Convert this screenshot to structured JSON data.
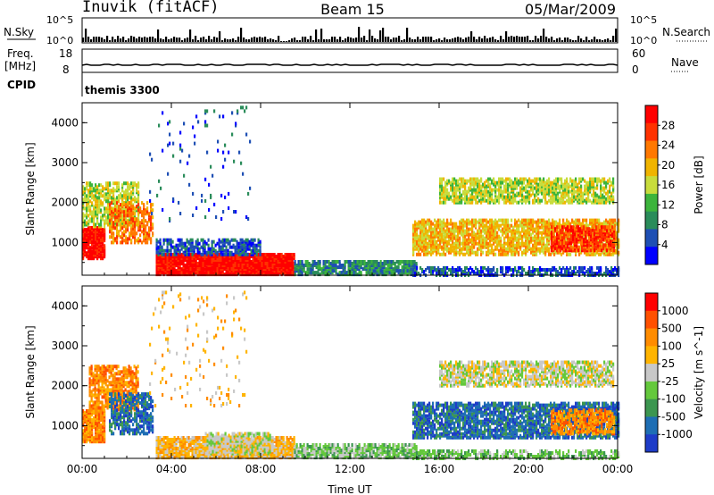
{
  "header": {
    "station": "Inuvik (fitACF)",
    "beam": "Beam 15",
    "date": "05/Mar/2009"
  },
  "summary_panels": {
    "nsky_label": "N.Sky",
    "nsearch_label": "N.Search",
    "nsky_ticks": [
      "10^5",
      "10^0"
    ],
    "nsearch_ticks": [
      "10^5",
      "10^0"
    ],
    "freq_label": "Freq.",
    "freq_unit": "[MHz]",
    "freq_ticks": [
      "18",
      "8"
    ],
    "nave_label": "Nave",
    "nave_ticks": [
      "60",
      "0"
    ],
    "cpid_label": "CPID",
    "cpid_value": "themis 3300"
  },
  "colors": {
    "power_scale": [
      "#0000ff",
      "#1e4fb4",
      "#2a8c5a",
      "#3cb43c",
      "#c8dc3c",
      "#f0b400",
      "#ff7800",
      "#ff3200",
      "#ff0000"
    ],
    "velocity_scale": [
      "#1e3cc8",
      "#1e6eb4",
      "#3c9650",
      "#64c83c",
      "#c8c8c8",
      "#ffb400",
      "#ff8c00",
      "#ff5000",
      "#ff0000"
    ]
  },
  "chart_data": [
    {
      "type": "heatmap",
      "title": "Power",
      "ylabel": "Slant Range [km]",
      "xlabel": "",
      "colorbar_label": "Power [dB]",
      "colorbar_ticks": [
        "28",
        "24",
        "20",
        "16",
        "12",
        "8",
        "4"
      ],
      "x_ticks": [
        "00:00",
        "04:00",
        "08:00",
        "12:00",
        "16:00",
        "20:00",
        "00:00"
      ],
      "y_ticks": [
        "4000",
        "3000",
        "2000",
        "1000"
      ],
      "xlim_hours": [
        0,
        24
      ],
      "ylim_km": [
        180,
        4500
      ],
      "regions": [
        {
          "t0": 0.0,
          "t1": 1.0,
          "r0": 600,
          "r1": 1400,
          "color": 8,
          "density": 0.85
        },
        {
          "t0": 0.0,
          "t1": 2.5,
          "r0": 1400,
          "r1": 2500,
          "color": 4,
          "density": 0.55
        },
        {
          "t0": 1.2,
          "t1": 3.2,
          "r0": 1000,
          "r1": 2000,
          "color": 6,
          "density": 0.5
        },
        {
          "t0": 3.3,
          "t1": 9.5,
          "r0": 200,
          "r1": 700,
          "color": 8,
          "density": 0.9
        },
        {
          "t0": 3.3,
          "t1": 8.0,
          "r0": 700,
          "r1": 1100,
          "color": 1,
          "density": 0.55
        },
        {
          "t0": 9.5,
          "t1": 15.0,
          "r0": 200,
          "r1": 550,
          "color": 2,
          "density": 0.7
        },
        {
          "t0": 14.8,
          "t1": 24.0,
          "r0": 700,
          "r1": 1600,
          "color": 5,
          "density": 0.65
        },
        {
          "t0": 16.0,
          "t1": 23.8,
          "r0": 2000,
          "r1": 2600,
          "color": 4,
          "density": 0.6
        },
        {
          "t0": 21.0,
          "t1": 23.8,
          "r0": 800,
          "r1": 1400,
          "color": 7,
          "density": 0.7
        },
        {
          "t0": 14.8,
          "t1": 24.0,
          "r0": 180,
          "r1": 400,
          "color": 1,
          "density": 0.5
        },
        {
          "t0": 3.0,
          "t1": 7.5,
          "r0": 1500,
          "r1": 4400,
          "color": 1,
          "density": 0.03
        }
      ]
    },
    {
      "type": "heatmap",
      "title": "Velocity",
      "ylabel": "Slant Range [km]",
      "xlabel": "Time UT",
      "colorbar_label": "Velocity [m s^-1]",
      "colorbar_ticks": [
        "1000",
        "500",
        "100",
        "25",
        "-25",
        "-100",
        "-500",
        "-1000"
      ],
      "x_ticks": [
        "00:00",
        "04:00",
        "08:00",
        "12:00",
        "16:00",
        "20:00",
        "00:00"
      ],
      "y_ticks": [
        "4000",
        "3000",
        "2000",
        "1000"
      ],
      "xlim_hours": [
        0,
        24
      ],
      "ylim_km": [
        180,
        4500
      ],
      "regions": [
        {
          "t0": 0.0,
          "t1": 1.0,
          "r0": 600,
          "r1": 1400,
          "color": 6,
          "density": 0.85
        },
        {
          "t0": 0.3,
          "t1": 2.5,
          "r0": 1400,
          "r1": 2500,
          "color": 6,
          "density": 0.6
        },
        {
          "t0": 1.2,
          "t1": 3.2,
          "r0": 800,
          "r1": 1800,
          "color": 1,
          "density": 0.5
        },
        {
          "t0": 3.3,
          "t1": 9.5,
          "r0": 200,
          "r1": 700,
          "color": 5,
          "density": 0.8
        },
        {
          "t0": 5.5,
          "t1": 8.5,
          "r0": 300,
          "r1": 800,
          "color": 4,
          "density": 0.6
        },
        {
          "t0": 9.5,
          "t1": 15.0,
          "r0": 200,
          "r1": 550,
          "color": 3,
          "density": 0.7
        },
        {
          "t0": 14.8,
          "t1": 24.0,
          "r0": 700,
          "r1": 1600,
          "color": 1,
          "density": 0.65
        },
        {
          "t0": 16.0,
          "t1": 23.8,
          "r0": 2000,
          "r1": 2600,
          "color": 4,
          "density": 0.6
        },
        {
          "t0": 21.0,
          "t1": 23.8,
          "r0": 800,
          "r1": 1400,
          "color": 6,
          "density": 0.6
        },
        {
          "t0": 14.8,
          "t1": 24.0,
          "r0": 180,
          "r1": 400,
          "color": 3,
          "density": 0.5
        },
        {
          "t0": 3.0,
          "t1": 7.5,
          "r0": 1500,
          "r1": 4400,
          "color": 5,
          "density": 0.03
        }
      ]
    }
  ]
}
